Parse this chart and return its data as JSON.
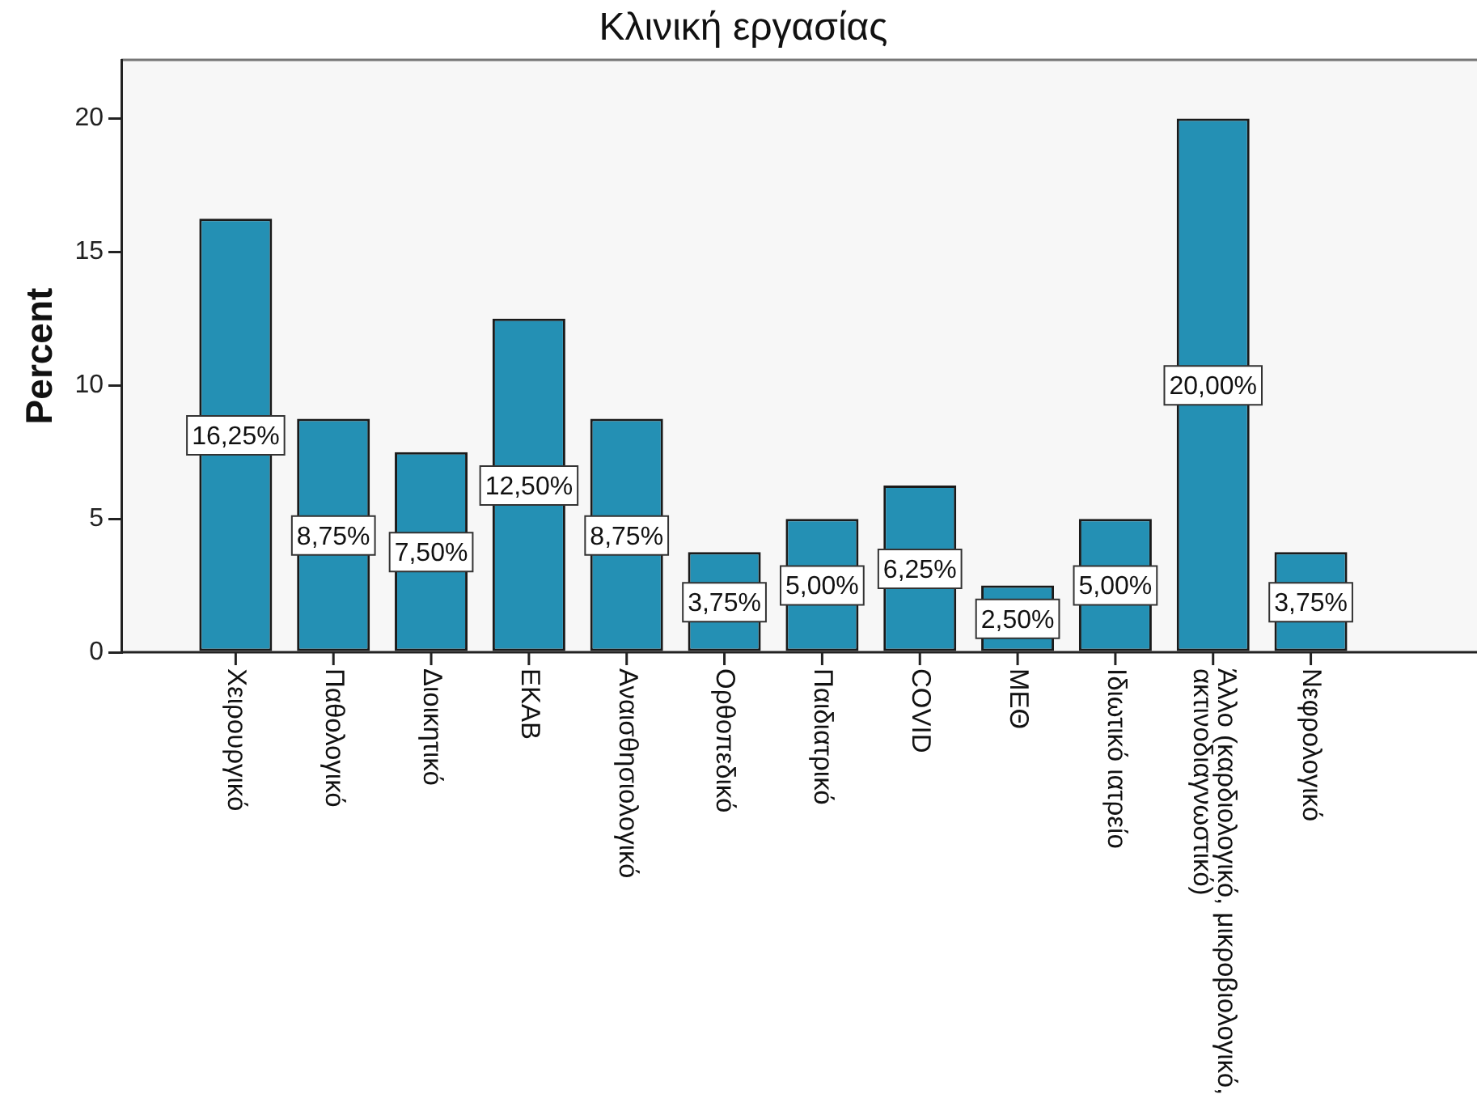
{
  "chart_data": {
    "type": "bar",
    "title": "Κλινική εργασίας",
    "ylabel": "Percent",
    "categories": [
      "Χειρουργικό",
      "Παθολογικό",
      "Διοικητικό",
      "ΕΚΑΒ",
      "Αναισθησιολογικό",
      "Ορθοπεδικό",
      "Παιδιατρικό",
      "COVID",
      "ΜΕΘ",
      "Ιδιωτικό ιατρείο",
      "Άλλο (καρδιολογικό, μικροβιολογικό, ακτινοδιαγνωστικό)",
      "Νεφρολογικό"
    ],
    "values": [
      16.25,
      8.75,
      7.5,
      12.5,
      8.75,
      3.75,
      5,
      6.25,
      2.5,
      5,
      20,
      3.75
    ],
    "value_labels": [
      "16,25%",
      "8,75%",
      "7,50%",
      "12,50%",
      "8,75%",
      "3,75%",
      "5,00%",
      "6,25%",
      "2,50%",
      "5,00%",
      "20,00%",
      "3,75%"
    ],
    "color": "#2490b4",
    "ylim": [
      0,
      22.2
    ],
    "yticks": [
      0,
      5,
      10,
      15,
      20
    ]
  }
}
